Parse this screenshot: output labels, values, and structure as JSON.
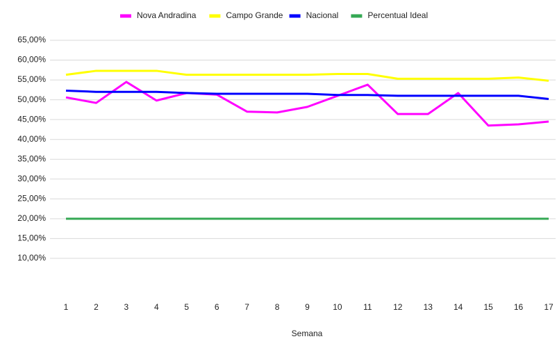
{
  "chart_data": {
    "type": "line",
    "x_label": "Semana",
    "categories": [
      "1",
      "2",
      "3",
      "4",
      "5",
      "6",
      "7",
      "8",
      "9",
      "10",
      "11",
      "12",
      "13",
      "14",
      "15",
      "16",
      "17"
    ],
    "series": [
      {
        "name": "Nova Andradina",
        "color": "#ff00ff",
        "values": [
          50.6,
          49.2,
          54.5,
          49.8,
          51.7,
          51.3,
          47.0,
          46.8,
          48.2,
          51.0,
          53.8,
          46.4,
          46.4,
          51.7,
          43.5,
          43.8,
          44.5
        ]
      },
      {
        "name": "Campo Grande",
        "color": "#ffff00",
        "values": [
          56.3,
          57.3,
          57.3,
          57.3,
          56.3,
          56.3,
          56.3,
          56.3,
          56.3,
          56.5,
          56.5,
          55.3,
          55.3,
          55.3,
          55.3,
          55.6,
          54.8
        ]
      },
      {
        "name": "Nacional",
        "color": "#0000ff",
        "values": [
          52.3,
          52.0,
          52.0,
          52.0,
          51.7,
          51.5,
          51.5,
          51.5,
          51.5,
          51.2,
          51.2,
          51.0,
          51.0,
          51.0,
          51.0,
          51.0,
          50.2
        ]
      },
      {
        "name": "Percentual Ideal",
        "color": "#34a853",
        "values": [
          20,
          20,
          20,
          20,
          20,
          20,
          20,
          20,
          20,
          20,
          20,
          20,
          20,
          20,
          20,
          20,
          20
        ]
      }
    ],
    "ylim": [
      0,
      65
    ],
    "yticks": [
      {
        "value": 10,
        "label": "10,00%"
      },
      {
        "value": 15,
        "label": "15,00%"
      },
      {
        "value": 20,
        "label": "20,00%"
      },
      {
        "value": 25,
        "label": "25,00%"
      },
      {
        "value": 30,
        "label": "30,00%"
      },
      {
        "value": 35,
        "label": "35,00%"
      },
      {
        "value": 40,
        "label": "40,00%"
      },
      {
        "value": 45,
        "label": "45,00%"
      },
      {
        "value": 50,
        "label": "50,00%"
      },
      {
        "value": 55,
        "label": "55,00%"
      },
      {
        "value": 60,
        "label": "60,00%"
      },
      {
        "value": 65,
        "label": "65,00%"
      }
    ],
    "grid": true,
    "legend": "top"
  }
}
